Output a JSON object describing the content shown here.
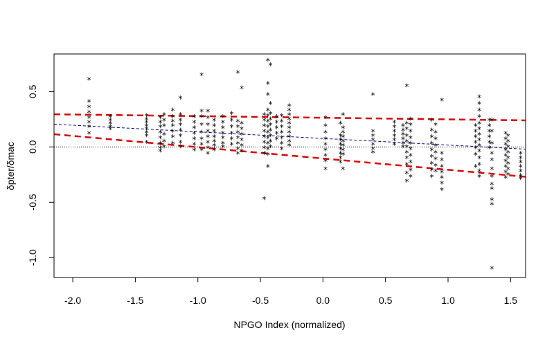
{
  "chart_data": {
    "type": "scatter",
    "title": "",
    "xlabel": "NPGO Index (normalized)",
    "ylabel": "δpter/δmac",
    "xlim": [
      -2.15,
      1.62
    ],
    "ylim": [
      -1.18,
      0.84
    ],
    "x_ticks": [
      -2.0,
      -1.5,
      -1.0,
      -0.5,
      0.0,
      0.5,
      1.0,
      1.5
    ],
    "x_tick_labels": [
      "-2.0",
      "-1.5",
      "-1.0",
      "-0.5",
      "0.0",
      "0.5",
      "1.0",
      "1.5"
    ],
    "y_ticks": [
      -1.0,
      -0.5,
      0.0,
      0.5
    ],
    "y_tick_labels": [
      "-1.0",
      "-0.5",
      "0.0",
      "0.5"
    ],
    "grid": false,
    "marker": "*",
    "reference_line": {
      "y": 0.0,
      "style": "dotted",
      "color": "#000000"
    },
    "fit_line": {
      "x": [
        -2.15,
        1.62
      ],
      "y": [
        0.205,
        -0.02
      ],
      "style": "dashed",
      "color": "#00008b"
    },
    "upper_band": {
      "x": [
        -2.15,
        1.62
      ],
      "y": [
        0.295,
        0.24
      ],
      "style": "dashed",
      "color": "#e00000"
    },
    "lower_band": {
      "x": [
        -2.15,
        1.62
      ],
      "y": [
        0.115,
        -0.27
      ],
      "style": "dashed",
      "color": "#e00000"
    },
    "clusters": [
      {
        "x": -1.87,
        "y": [
          0.61,
          0.41,
          0.36,
          0.31,
          0.26,
          0.22,
          0.18,
          0.12
        ]
      },
      {
        "x": -1.7,
        "y": [
          0.27,
          0.24,
          0.21,
          0.18,
          0.16
        ]
      },
      {
        "x": -1.41,
        "y": [
          0.28,
          0.25,
          0.22,
          0.19,
          0.16,
          0.13,
          0.1,
          0.04
        ]
      },
      {
        "x": -1.3,
        "y": [
          0.26,
          0.22,
          0.18,
          0.13,
          0.08,
          0.03,
          -0.01,
          -0.04
        ]
      },
      {
        "x": -1.27,
        "y": [
          0.29,
          0.24,
          0.19,
          0.11,
          0.05,
          0.0
        ]
      },
      {
        "x": -1.2,
        "y": [
          0.33,
          0.27,
          0.23,
          0.19,
          0.14,
          0.09,
          0.03
        ]
      },
      {
        "x": -1.14,
        "y": [
          0.44,
          0.29,
          0.24,
          0.2,
          0.15,
          0.1,
          0.04,
          0.0
        ]
      },
      {
        "x": -1.03,
        "y": [
          0.27,
          0.22,
          0.17,
          0.12,
          0.07,
          0.02,
          -0.03
        ]
      },
      {
        "x": -0.97,
        "y": [
          0.65,
          0.32,
          0.27,
          0.2,
          0.13,
          0.07,
          0.02,
          -0.03
        ]
      },
      {
        "x": -0.92,
        "y": [
          0.32,
          0.26,
          0.2,
          0.14,
          0.09,
          0.04,
          -0.01,
          -0.06
        ]
      },
      {
        "x": -0.87,
        "y": [
          0.24,
          0.19,
          0.14,
          0.09,
          0.05,
          0.01,
          -0.03
        ]
      },
      {
        "x": -0.8,
        "y": [
          0.27,
          0.22,
          0.17,
          0.12,
          0.08,
          0.03,
          0.0
        ]
      },
      {
        "x": -0.73,
        "y": [
          0.3,
          0.24,
          0.18,
          0.12,
          0.07,
          0.02
        ]
      },
      {
        "x": -0.68,
        "y": [
          0.67,
          0.23,
          0.18,
          0.13,
          0.08,
          0.03,
          -0.02,
          -0.06
        ]
      },
      {
        "x": -0.65,
        "y": [
          0.53,
          0.21,
          0.16,
          0.11,
          0.06,
          0.01,
          -0.04
        ]
      },
      {
        "x": -0.47,
        "y": [
          0.29,
          0.24,
          0.19,
          0.14,
          0.09,
          0.04,
          -0.01,
          -0.06,
          -0.47
        ]
      },
      {
        "x": -0.44,
        "y": [
          0.78,
          0.57,
          0.47,
          0.33,
          0.28,
          0.23,
          0.18,
          0.13,
          0.08,
          0.03,
          -0.02,
          -0.07,
          -0.18
        ]
      },
      {
        "x": -0.42,
        "y": [
          0.74,
          0.39,
          0.3,
          0.25,
          0.2,
          0.15,
          0.1,
          0.05,
          0.0
        ]
      },
      {
        "x": -0.37,
        "y": [
          0.27,
          0.22,
          0.17,
          0.12,
          0.07
        ]
      },
      {
        "x": -0.33,
        "y": [
          0.28,
          0.23,
          0.18,
          0.13,
          0.08,
          0.03,
          -0.02
        ]
      },
      {
        "x": -0.27,
        "y": [
          0.37,
          0.33,
          0.29,
          0.25,
          0.21,
          0.17,
          0.13,
          0.09,
          0.05,
          0.01
        ]
      },
      {
        "x": 0.02,
        "y": [
          0.26,
          0.19,
          0.13,
          0.07,
          0.02,
          -0.03,
          -0.08,
          -0.13,
          -0.2
        ]
      },
      {
        "x": 0.14,
        "y": [
          0.21,
          0.1,
          0.06,
          0.02,
          -0.02,
          -0.06,
          -0.1,
          -0.14
        ]
      },
      {
        "x": 0.16,
        "y": [
          0.29,
          0.17,
          0.13,
          0.09,
          0.05,
          0.01,
          -0.03,
          -0.07,
          -0.2
        ]
      },
      {
        "x": 0.4,
        "y": [
          0.47,
          0.14,
          0.1,
          0.06,
          0.02,
          -0.02,
          -0.05
        ]
      },
      {
        "x": 0.57,
        "y": [
          0.22,
          0.18,
          0.14,
          0.1,
          0.06,
          0.02
        ]
      },
      {
        "x": 0.64,
        "y": [
          0.19,
          0.15,
          0.11,
          0.07,
          0.03,
          0.0
        ]
      },
      {
        "x": 0.67,
        "y": [
          0.55,
          0.21,
          0.16,
          0.1,
          0.05,
          0.0,
          -0.05,
          -0.1,
          -0.16,
          -0.24,
          -0.31
        ]
      },
      {
        "x": 0.7,
        "y": [
          0.25,
          0.2,
          0.14,
          0.08,
          0.03,
          -0.02,
          -0.08,
          -0.14,
          -0.21,
          -0.27
        ]
      },
      {
        "x": 0.87,
        "y": [
          0.24,
          0.15,
          0.09,
          0.03,
          -0.03,
          -0.09,
          -0.15,
          -0.21,
          -0.27
        ]
      },
      {
        "x": 0.9,
        "y": [
          0.2,
          0.13,
          0.07,
          0.01,
          -0.05,
          -0.11,
          -0.17,
          -0.22
        ]
      },
      {
        "x": 0.95,
        "y": [
          0.42,
          -0.06,
          -0.12,
          -0.18,
          -0.23,
          -0.28,
          -0.33,
          -0.39
        ]
      },
      {
        "x": 1.22,
        "y": [
          0.19,
          0.14,
          0.09,
          0.04,
          -0.01,
          -0.07,
          -0.18
        ]
      },
      {
        "x": 1.25,
        "y": [
          0.45,
          0.39,
          0.33,
          0.27,
          0.21,
          0.16,
          0.11,
          0.06,
          0.01,
          -0.04,
          -0.1,
          -0.16,
          -0.22,
          -0.27
        ]
      },
      {
        "x": 1.33,
        "y": [
          0.24,
          0.19,
          0.14,
          0.09,
          0.04,
          -0.01
        ]
      },
      {
        "x": 1.35,
        "y": [
          0.24,
          0.14,
          0.03,
          -0.06,
          -0.12,
          -0.2,
          -0.27,
          -0.34,
          -0.38,
          -0.48,
          -0.52,
          -1.1
        ]
      },
      {
        "x": 1.46,
        "y": [
          0.12,
          0.07,
          0.02,
          -0.03,
          -0.08,
          -0.13,
          -0.18,
          -0.23,
          -0.28
        ]
      },
      {
        "x": 1.48,
        "y": [
          0.1,
          0.05,
          0.0,
          -0.05,
          -0.1,
          -0.15,
          -0.2,
          -0.25
        ]
      },
      {
        "x": 1.58,
        "y": [
          -0.06,
          -0.1,
          -0.14,
          -0.18,
          -0.22,
          -0.26,
          -0.29
        ]
      }
    ]
  }
}
